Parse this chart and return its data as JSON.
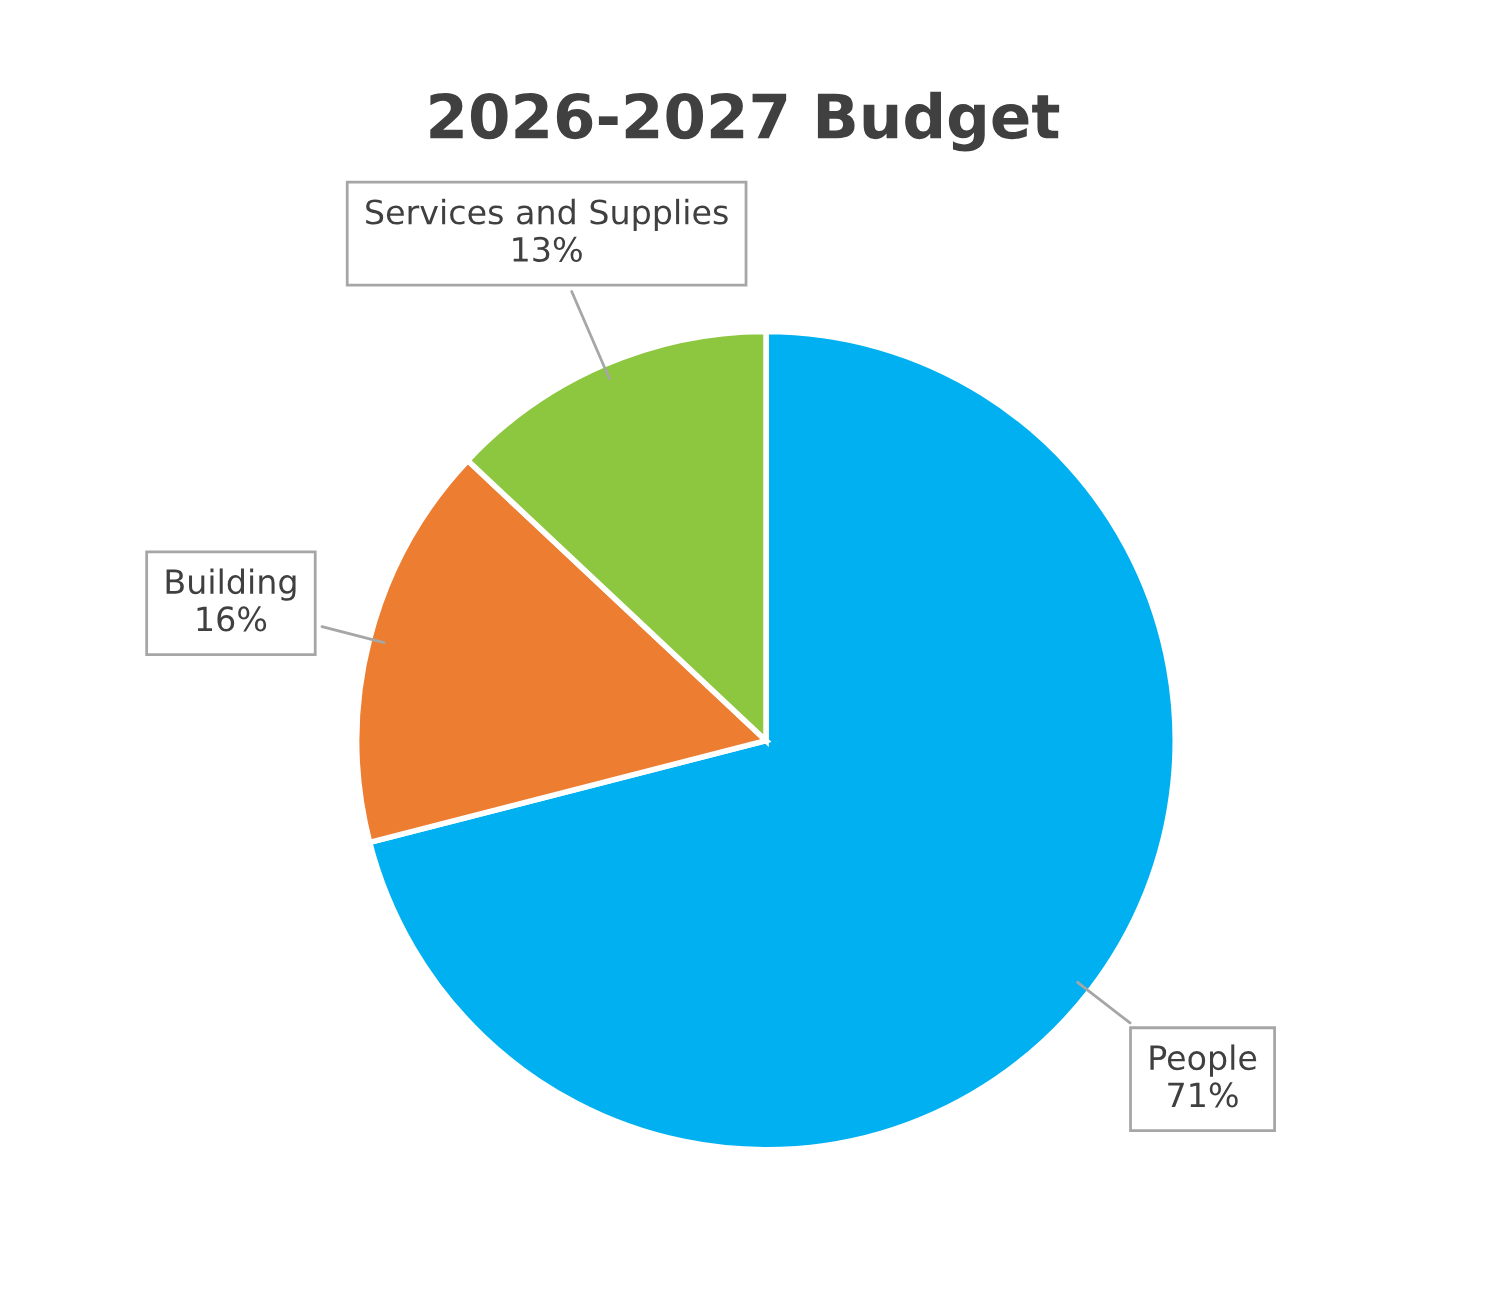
{
  "chart_data": {
    "type": "pie",
    "title": "2026-2027 Budget",
    "categories": [
      "People",
      "Building",
      "Services and Supplies"
    ],
    "values": [
      71,
      16,
      13
    ],
    "colors": [
      "#00b0f0",
      "#ed7d31",
      "#8dc63f"
    ],
    "value_labels": [
      "71%",
      "16%",
      "13%"
    ]
  }
}
